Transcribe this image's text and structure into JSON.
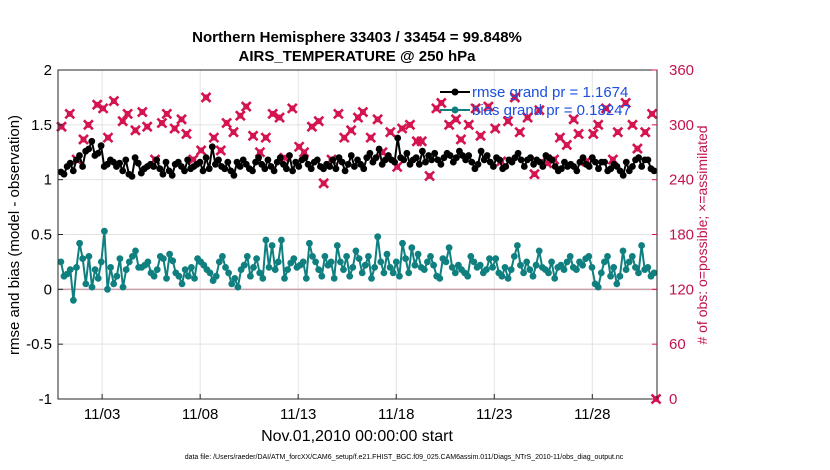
{
  "title_line1": "Northern Hemisphere 33403 / 33454 = 99.848%",
  "title_line2": "AIRS_TEMPERATURE @ 250 hPa",
  "ylabel": "rmse and bias (model - observation)",
  "ylabel_right": "# of obs: o=possible; ×=assimilated",
  "xlabel": "Nov.01,2010 00:00:00 start",
  "footnote": "data file: /Users/raeder/DAI/ATM_forcXX/CAM6_setup/f.e21.FHIST_BGC.f09_025.CAM6assim.011/Diags_NTrS_2010-11/obs_diag_output.nc",
  "colors": {
    "rmse": "#000000",
    "bias": "#0f7f7f",
    "obs": "#d4144f",
    "zero": "#c9a0a8",
    "grid": "#e3e3e3",
    "legend_text": "#1a4fe0"
  },
  "chart_data": {
    "type": "line",
    "x_unit": "days since Nov.01,2010 00:00:00",
    "xlim": [
      0.0,
      30.55
    ],
    "xticks": [
      2.25,
      7.25,
      12.25,
      17.25,
      22.25,
      27.25
    ],
    "xticklabels": [
      "11/03",
      "11/08",
      "11/13",
      "11/18",
      "11/23",
      "11/28"
    ],
    "ylim": [
      -1,
      2
    ],
    "yticks": [
      -1,
      -0.5,
      0,
      0.5,
      1,
      1.5,
      2
    ],
    "yticklabels": [
      "-1",
      "-0.5",
      "0",
      "0.5",
      "1",
      "1.5",
      "2"
    ],
    "y2lim": [
      0,
      360
    ],
    "y2ticks": [
      0,
      60,
      120,
      180,
      240,
      300,
      360
    ],
    "y2ticklabels": [
      "0",
      "60",
      "120",
      "180",
      "240",
      "300",
      "360"
    ],
    "legend": {
      "location": "top-right",
      "entries": [
        "rmse grand pr = 1.1674",
        "bias grand pr = 0.18247"
      ]
    },
    "series": [
      {
        "name": "rmse grand pr = 1.1674",
        "axis": "left",
        "style": "line-filled-circle",
        "values": [
          1.07,
          1.05,
          1.12,
          1.15,
          1.08,
          1.18,
          1.22,
          1.12,
          1.26,
          1.28,
          1.35,
          1.22,
          1.24,
          1.31,
          1.12,
          1.14,
          1.18,
          1.16,
          1.12,
          1.15,
          1.08,
          1.18,
          1.05,
          1.03,
          1.2,
          1.15,
          1.06,
          1.1,
          1.12,
          1.14,
          1.12,
          1.18,
          1.1,
          1.05,
          1.16,
          1.08,
          1.04,
          1.14,
          1.16,
          1.12,
          1.08,
          1.18,
          1.1,
          1.12,
          1.14,
          1.16,
          1.08,
          1.2,
          1.1,
          1.3,
          1.14,
          1.18,
          1.12,
          1.1,
          1.16,
          1.08,
          1.04,
          1.16,
          1.12,
          1.18,
          1.14,
          1.1,
          1.08,
          1.16,
          1.2,
          1.14,
          1.1,
          1.18,
          1.12,
          1.08,
          1.16,
          1.2,
          1.14,
          1.1,
          1.22,
          1.08,
          1.16,
          1.12,
          1.18,
          1.2,
          1.14,
          1.1,
          1.16,
          1.18,
          1.12,
          1.1,
          1.14,
          1.12,
          1.18,
          1.1,
          1.2,
          1.16,
          1.08,
          1.14,
          1.22,
          1.12,
          1.18,
          1.14,
          1.1,
          1.2,
          1.24,
          1.16,
          1.2,
          1.28,
          1.14,
          1.18,
          1.22,
          1.18,
          1.16,
          1.38,
          1.2,
          1.18,
          1.24,
          1.14,
          1.18,
          1.2,
          1.14,
          1.26,
          1.16,
          1.22,
          1.18,
          1.24,
          1.18,
          1.14,
          1.2,
          1.24,
          1.22,
          1.16,
          1.2,
          1.26,
          1.22,
          1.18,
          1.22,
          1.16,
          1.1,
          1.14,
          1.26,
          1.18,
          1.22,
          1.16,
          1.12,
          1.2,
          1.18,
          1.1,
          1.12,
          1.18,
          1.16,
          1.2,
          1.24,
          1.18,
          1.12,
          1.18,
          1.2,
          1.14,
          1.18,
          1.16,
          1.12,
          1.22,
          1.2,
          1.18,
          1.12,
          1.08,
          1.1,
          1.16,
          1.12,
          1.14,
          1.12,
          1.08,
          1.16,
          1.2,
          1.14,
          1.12,
          1.2,
          1.16,
          1.1,
          1.16,
          1.16,
          1.08,
          1.1,
          1.14,
          1.12,
          1.08,
          1.04,
          1.16,
          1.08,
          1.12,
          1.18,
          1.2,
          1.12,
          1.18,
          1.18,
          1.1,
          1.08
        ]
      },
      {
        "name": "bias grand pr = 0.18247",
        "axis": "left",
        "style": "line-filled-circle",
        "values": [
          0.25,
          0.12,
          0.14,
          0.18,
          -0.1,
          0.2,
          0.42,
          0.28,
          0.05,
          0.3,
          0.02,
          0.18,
          0.1,
          0.25,
          0.53,
          0.0,
          0.2,
          0.05,
          0.12,
          0.28,
          0.02,
          0.18,
          0.25,
          0.3,
          0.35,
          0.2,
          0.2,
          0.22,
          0.25,
          0.15,
          0.12,
          0.18,
          0.3,
          0.28,
          0.1,
          0.32,
          0.26,
          0.15,
          0.12,
          0.05,
          0.18,
          0.12,
          0.2,
          0.1,
          0.28,
          0.25,
          0.22,
          0.18,
          0.15,
          0.08,
          0.12,
          0.25,
          0.3,
          0.2,
          0.15,
          0.05,
          0.1,
          0.02,
          0.18,
          0.22,
          0.3,
          0.12,
          0.2,
          0.28,
          0.15,
          0.1,
          0.45,
          0.2,
          0.4,
          0.18,
          0.25,
          0.45,
          0.1,
          0.18,
          0.24,
          0.28,
          0.2,
          0.22,
          0.25,
          0.1,
          0.42,
          0.3,
          0.25,
          0.18,
          0.12,
          0.3,
          0.22,
          0.25,
          0.1,
          0.4,
          0.25,
          0.18,
          0.3,
          0.12,
          0.2,
          0.35,
          0.28,
          0.15,
          0.22,
          0.3,
          0.1,
          0.2,
          0.48,
          0.25,
          0.15,
          0.32,
          0.2,
          0.15,
          0.25,
          0.12,
          0.42,
          0.28,
          0.15,
          0.38,
          0.22,
          0.32,
          0.2,
          0.18,
          0.25,
          0.3,
          0.22,
          0.12,
          0.1,
          0.28,
          0.25,
          0.38,
          0.2,
          0.15,
          0.22,
          0.18,
          0.15,
          0.12,
          0.3,
          0.25,
          0.2,
          0.22,
          0.15,
          0.18,
          0.28,
          0.2,
          0.28,
          0.15,
          0.12,
          0.2,
          0.1,
          0.18,
          0.3,
          0.4,
          0.22,
          0.15,
          0.25,
          0.18,
          0.12,
          0.22,
          0.35,
          0.2,
          0.18,
          0.15,
          0.25,
          0.1,
          0.2,
          0.22,
          0.18,
          0.25,
          0.3,
          0.2,
          0.18,
          0.25,
          0.22,
          0.28,
          0.3,
          0.2,
          0.05,
          0.02,
          0.15,
          0.25,
          0.3,
          0.12,
          0.2,
          0.05,
          0.12,
          0.35,
          0.18,
          0.25,
          0.3,
          0.2,
          0.15,
          0.4,
          0.18,
          0.2,
          0.12,
          0.15
        ]
      },
      {
        "name": "obs assimilated",
        "axis": "right",
        "style": "marker-x",
        "x": [
          0.18,
          0.6,
          0.95,
          1.3,
          1.55,
          2.0,
          2.3,
          2.55,
          2.85,
          3.3,
          3.55,
          3.95,
          4.3,
          4.55,
          4.95,
          5.3,
          5.55,
          5.95,
          6.3,
          6.55,
          6.9,
          7.3,
          7.55,
          7.95,
          8.3,
          8.6,
          8.95,
          9.3,
          9.6,
          9.95,
          10.3,
          10.6,
          10.95,
          11.3,
          11.55,
          11.95,
          12.3,
          12.55,
          12.95,
          13.3,
          13.55,
          13.95,
          14.3,
          14.6,
          14.95,
          15.3,
          15.55,
          15.95,
          16.3,
          16.55,
          16.95,
          17.3,
          17.55,
          17.95,
          18.3,
          18.55,
          18.95,
          19.3,
          19.55,
          19.95,
          20.3,
          20.55,
          20.95,
          21.3,
          21.55,
          21.95,
          22.3,
          22.6,
          22.95,
          23.3,
          23.55,
          23.95,
          24.3,
          24.55,
          24.95,
          25.3,
          25.6,
          25.95,
          26.3,
          26.55,
          26.95,
          27.3,
          27.55,
          27.95,
          28.3,
          28.55,
          28.95,
          29.3,
          29.55,
          29.95,
          30.3,
          30.5
        ],
        "values": [
          298,
          312,
          262,
          284,
          300,
          322,
          318,
          286,
          326,
          304,
          312,
          294,
          314,
          298,
          262,
          302,
          312,
          296,
          306,
          290,
          262,
          272,
          330,
          286,
          272,
          302,
          292,
          310,
          320,
          288,
          270,
          286,
          312,
          308,
          264,
          318,
          276,
          270,
          298,
          304,
          236,
          262,
          312,
          286,
          294,
          308,
          314,
          286,
          306,
          270,
          292,
          254,
          296,
          300,
          282,
          282,
          244,
          318,
          324,
          300,
          306,
          284,
          300,
          318,
          288,
          320,
          296,
          260,
          304,
          330,
          292,
          308,
          246,
          316,
          258,
          262,
          286,
          278,
          306,
          290,
          260,
          290,
          300,
          318,
          262,
          292,
          324,
          300,
          274,
          292,
          312,
          0
        ]
      }
    ]
  }
}
